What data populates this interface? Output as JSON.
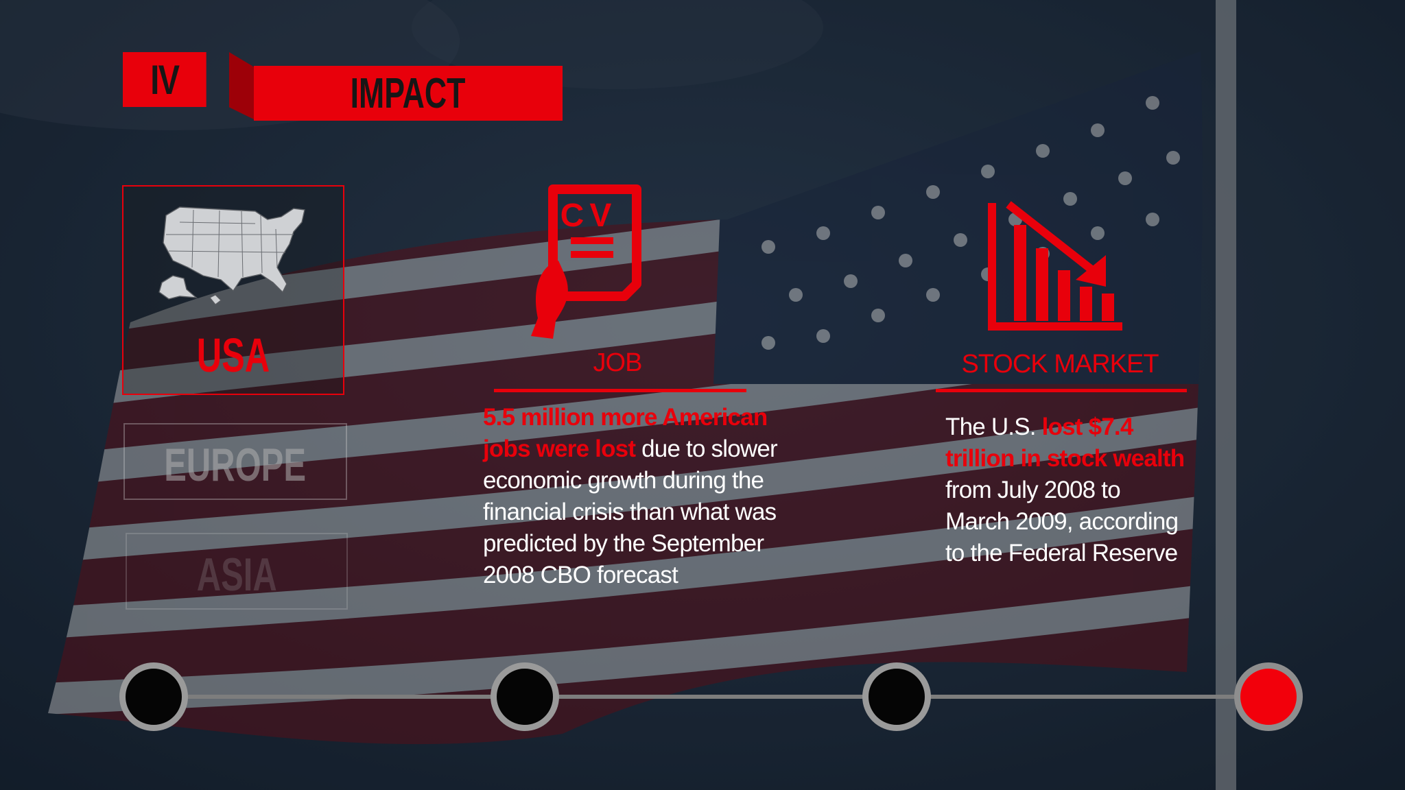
{
  "header": {
    "section_numeral": "IV",
    "section_title": "IMPACT"
  },
  "regions": {
    "items": [
      {
        "label": "USA",
        "state": "active"
      },
      {
        "label": "EUROPE",
        "state": "inactive"
      },
      {
        "label": "ASIA",
        "state": "inactive"
      }
    ]
  },
  "cards": {
    "job": {
      "icon": "cv-resume-icon",
      "title": "JOB",
      "highlight": "5.5 million more American jobs were lost",
      "body": " due to slower economic growth during the financial crisis than what was predicted by the September 2008 CBO forecast"
    },
    "stock": {
      "icon": "declining-chart-icon",
      "title": "STOCK MARKET",
      "lead": "The U.S. ",
      "highlight": "lost $7.4 trillion in stock wealth",
      "body": " from July 2008 to March 2009, according to the Federal Reserve"
    }
  },
  "timeline": {
    "step_count": 4,
    "current_step": 4
  },
  "colors": {
    "accent": "#e8000b",
    "text": "#ffffff",
    "background": "#1b2a3c"
  }
}
